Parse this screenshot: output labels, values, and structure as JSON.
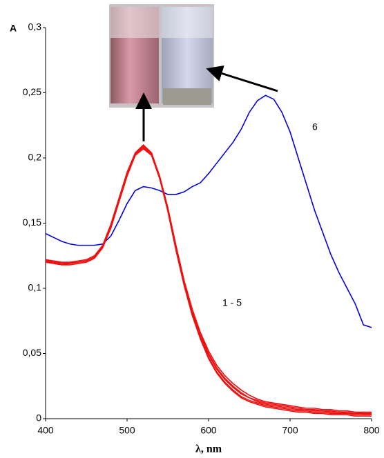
{
  "chart_data": {
    "type": "line",
    "ylabel": "A",
    "xlabel": "λ, nm",
    "annotations": [
      "6",
      "1 - 5"
    ],
    "x": [
      400,
      410,
      420,
      430,
      440,
      450,
      460,
      470,
      480,
      490,
      500,
      510,
      520,
      530,
      540,
      550,
      560,
      570,
      580,
      590,
      600,
      610,
      620,
      630,
      640,
      650,
      660,
      670,
      680,
      690,
      700,
      710,
      720,
      730,
      740,
      750,
      760,
      770,
      780,
      790,
      800
    ],
    "series": [
      {
        "color": "#0000dd",
        "values": [
          0.142,
          0.139,
          0.136,
          0.134,
          0.133,
          0.133,
          0.133,
          0.134,
          0.14,
          0.152,
          0.165,
          0.175,
          0.178,
          0.177,
          0.175,
          0.172,
          0.172,
          0.174,
          0.178,
          0.181,
          0.188,
          0.196,
          0.204,
          0.212,
          0.222,
          0.235,
          0.244,
          0.248,
          0.245,
          0.235,
          0.22,
          0.2,
          0.18,
          0.16,
          0.143,
          0.126,
          0.112,
          0.1,
          0.088,
          0.072,
          0.07
        ]
      },
      {
        "color": "#ee1111",
        "values": [
          0.121,
          0.12,
          0.119,
          0.119,
          0.12,
          0.121,
          0.124,
          0.132,
          0.148,
          0.168,
          0.188,
          0.203,
          0.209,
          0.203,
          0.185,
          0.16,
          0.13,
          0.103,
          0.08,
          0.062,
          0.047,
          0.036,
          0.028,
          0.022,
          0.017,
          0.014,
          0.012,
          0.01,
          0.009,
          0.008,
          0.007,
          0.006,
          0.006,
          0.005,
          0.005,
          0.004,
          0.004,
          0.004,
          0.003,
          0.003,
          0.003
        ]
      },
      {
        "color": "#ee1111",
        "values": [
          0.12,
          0.119,
          0.118,
          0.118,
          0.119,
          0.12,
          0.123,
          0.131,
          0.147,
          0.167,
          0.187,
          0.202,
          0.207,
          0.202,
          0.185,
          0.161,
          0.132,
          0.105,
          0.083,
          0.065,
          0.05,
          0.039,
          0.031,
          0.025,
          0.02,
          0.016,
          0.014,
          0.012,
          0.011,
          0.01,
          0.009,
          0.008,
          0.007,
          0.007,
          0.006,
          0.006,
          0.005,
          0.005,
          0.005,
          0.004,
          0.004
        ]
      },
      {
        "color": "#ee1111",
        "values": [
          0.122,
          0.121,
          0.12,
          0.12,
          0.121,
          0.122,
          0.125,
          0.133,
          0.149,
          0.169,
          0.189,
          0.204,
          0.21,
          0.204,
          0.186,
          0.161,
          0.131,
          0.104,
          0.081,
          0.063,
          0.049,
          0.038,
          0.03,
          0.024,
          0.019,
          0.016,
          0.013,
          0.011,
          0.01,
          0.009,
          0.008,
          0.007,
          0.007,
          0.006,
          0.006,
          0.005,
          0.005,
          0.004,
          0.004,
          0.004,
          0.004
        ]
      },
      {
        "color": "#ee1111",
        "values": [
          0.121,
          0.121,
          0.119,
          0.12,
          0.12,
          0.121,
          0.124,
          0.132,
          0.147,
          0.167,
          0.188,
          0.203,
          0.208,
          0.203,
          0.186,
          0.162,
          0.133,
          0.106,
          0.084,
          0.066,
          0.052,
          0.041,
          0.033,
          0.027,
          0.022,
          0.018,
          0.015,
          0.013,
          0.012,
          0.011,
          0.01,
          0.009,
          0.008,
          0.008,
          0.007,
          0.007,
          0.006,
          0.006,
          0.005,
          0.005,
          0.005
        ]
      },
      {
        "color": "#ee1111",
        "values": [
          0.12,
          0.12,
          0.118,
          0.119,
          0.12,
          0.121,
          0.124,
          0.131,
          0.146,
          0.166,
          0.186,
          0.202,
          0.208,
          0.202,
          0.184,
          0.159,
          0.129,
          0.102,
          0.079,
          0.061,
          0.046,
          0.035,
          0.027,
          0.021,
          0.016,
          0.013,
          0.011,
          0.009,
          0.008,
          0.007,
          0.006,
          0.005,
          0.005,
          0.004,
          0.004,
          0.003,
          0.003,
          0.003,
          0.002,
          0.002,
          0.002
        ]
      }
    ],
    "xlim": [
      400,
      800
    ],
    "xticks": [
      400,
      500,
      600,
      700,
      800
    ],
    "ylim": [
      0,
      0.3
    ],
    "yticks": [
      0,
      {
        "value": 0.05,
        "label": "0,05"
      },
      {
        "value": 0.1,
        "label": "0,1"
      },
      {
        "value": 0.15,
        "label": "0,15"
      },
      {
        "value": 0.2,
        "label": "0,2"
      },
      {
        "value": 0.25,
        "label": "0,25"
      },
      {
        "value": 0.3,
        "label": "0,3"
      }
    ],
    "grid": false
  }
}
